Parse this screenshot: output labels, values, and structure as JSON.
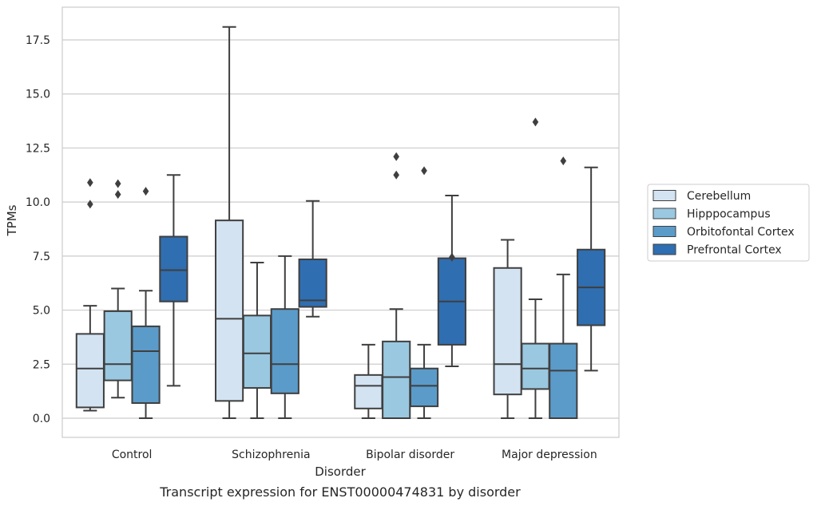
{
  "chart_data": {
    "type": "box",
    "xlabel": "Disorder",
    "ylabel": "TPMs",
    "caption": "Transcript expression for ENST00000474831 by disorder",
    "ylim": [
      -0.9,
      19.0
    ],
    "yticks": [
      0.0,
      2.5,
      5.0,
      7.5,
      10.0,
      12.5,
      15.0,
      17.5
    ],
    "ytick_labels": [
      "0.0",
      "2.5",
      "5.0",
      "7.5",
      "10.0",
      "12.5",
      "15.0",
      "17.5"
    ],
    "grid": true,
    "legend_placement": "right",
    "categories": [
      "Control",
      "Schizophrenia",
      "Bipolar disorder",
      "Major depression"
    ],
    "series": [
      {
        "name": "Cerebellum",
        "color": "#d3e3f2",
        "boxes": [
          {
            "whislo": 0.35,
            "q1": 0.5,
            "med": 2.3,
            "q3": 3.9,
            "whishi": 5.2,
            "fliers": [
              9.9,
              10.9
            ]
          },
          {
            "whislo": 0.0,
            "q1": 0.8,
            "med": 4.6,
            "q3": 9.15,
            "whishi": 18.1,
            "fliers": []
          },
          {
            "whislo": 0.0,
            "q1": 0.45,
            "med": 1.5,
            "q3": 2.0,
            "whishi": 3.4,
            "fliers": []
          },
          {
            "whislo": 0.0,
            "q1": 1.1,
            "med": 2.5,
            "q3": 6.95,
            "whishi": 8.25,
            "fliers": []
          }
        ]
      },
      {
        "name": "Hipppocampus",
        "color": "#9ac8e0",
        "boxes": [
          {
            "whislo": 0.95,
            "q1": 1.75,
            "med": 2.5,
            "q3": 4.95,
            "whishi": 6.0,
            "fliers": [
              10.35,
              10.85
            ]
          },
          {
            "whislo": 0.0,
            "q1": 1.4,
            "med": 3.0,
            "q3": 4.75,
            "whishi": 7.2,
            "fliers": []
          },
          {
            "whislo": 0.0,
            "q1": 0.0,
            "med": 1.9,
            "q3": 3.55,
            "whishi": 5.05,
            "fliers": [
              11.25,
              12.1
            ]
          },
          {
            "whislo": 0.0,
            "q1": 1.35,
            "med": 2.3,
            "q3": 3.45,
            "whishi": 5.5,
            "fliers": [
              13.7
            ]
          }
        ]
      },
      {
        "name": "Orbitofontal Cortex",
        "color": "#5b9bc9",
        "boxes": [
          {
            "whislo": 0.0,
            "q1": 0.7,
            "med": 3.1,
            "q3": 4.25,
            "whishi": 5.9,
            "fliers": [
              10.5
            ]
          },
          {
            "whislo": 0.0,
            "q1": 1.15,
            "med": 2.5,
            "q3": 5.05,
            "whishi": 7.5,
            "fliers": []
          },
          {
            "whislo": 0.0,
            "q1": 0.55,
            "med": 1.5,
            "q3": 2.3,
            "whishi": 3.4,
            "fliers": [
              11.45
            ]
          },
          {
            "whislo": 0.0,
            "q1": 0.0,
            "med": 2.2,
            "q3": 3.45,
            "whishi": 6.65,
            "fliers": [
              11.9
            ]
          }
        ]
      },
      {
        "name": "Prefrontal Cortex",
        "color": "#2f6eb0",
        "boxes": [
          {
            "whislo": 1.5,
            "q1": 5.4,
            "med": 6.85,
            "q3": 8.4,
            "whishi": 11.25,
            "fliers": []
          },
          {
            "whislo": 4.7,
            "q1": 5.15,
            "med": 5.45,
            "q3": 7.35,
            "whishi": 10.05,
            "fliers": []
          },
          {
            "whislo": 2.4,
            "q1": 3.4,
            "med": 5.4,
            "q3": 7.4,
            "whishi": 10.3,
            "fliers": [
              7.45
            ]
          },
          {
            "whislo": 2.2,
            "q1": 4.3,
            "med": 6.05,
            "q3": 7.8,
            "whishi": 11.6,
            "fliers": []
          }
        ]
      }
    ]
  }
}
